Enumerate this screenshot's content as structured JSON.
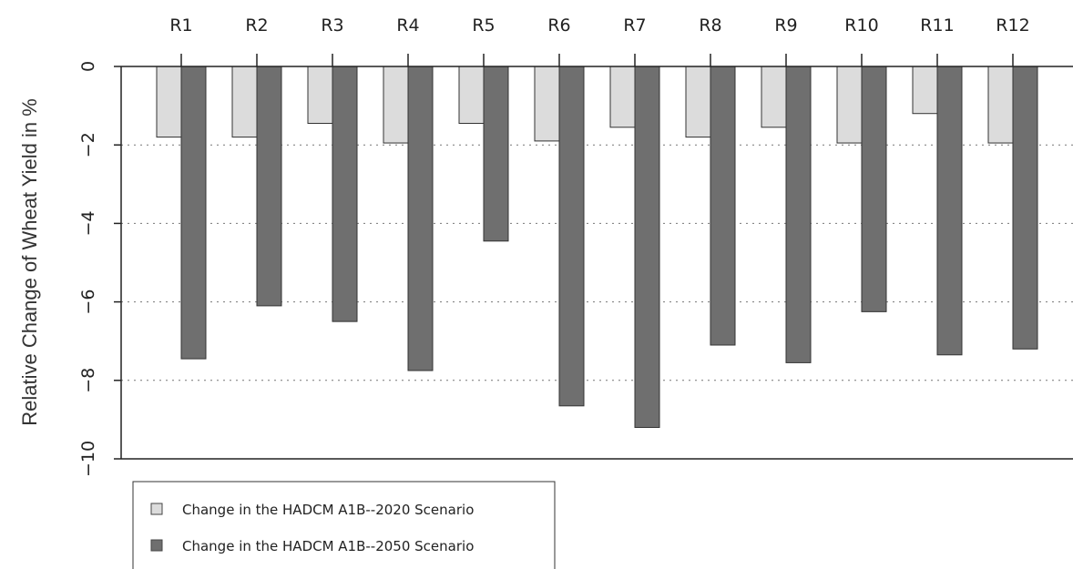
{
  "chart_data": {
    "type": "bar",
    "title": "",
    "xlabel": "",
    "ylabel": "Relative Change of Wheat Yield in %",
    "categories": [
      "R1",
      "R2",
      "R3",
      "R4",
      "R5",
      "R6",
      "R7",
      "R8",
      "R9",
      "R10",
      "R11",
      "R12"
    ],
    "series": [
      {
        "name": "Change in the HADCM A1B--2020 Scenario",
        "color": "#dcdcdc",
        "values": [
          -1.8,
          -1.8,
          -1.45,
          -1.95,
          -1.45,
          -1.9,
          -1.55,
          -1.8,
          -1.55,
          -1.95,
          -1.2,
          -1.95
        ]
      },
      {
        "name": "Change in the HADCM A1B--2050 Scenario",
        "color": "#6f6f6f",
        "values": [
          -7.45,
          -6.1,
          -6.5,
          -7.75,
          -4.45,
          -8.65,
          -9.2,
          -7.1,
          -7.55,
          -6.25,
          -7.35,
          -7.2
        ]
      }
    ],
    "ylim": [
      -10,
      0
    ],
    "yticks": [
      0,
      -2,
      -4,
      -6,
      -8,
      -10
    ],
    "ytick_labels": [
      "0",
      "−2",
      "−4",
      "−6",
      "−8",
      "−10"
    ],
    "grid": "horizontal dotted",
    "category_axis_position": "top",
    "legend_position": "bottom-left"
  }
}
